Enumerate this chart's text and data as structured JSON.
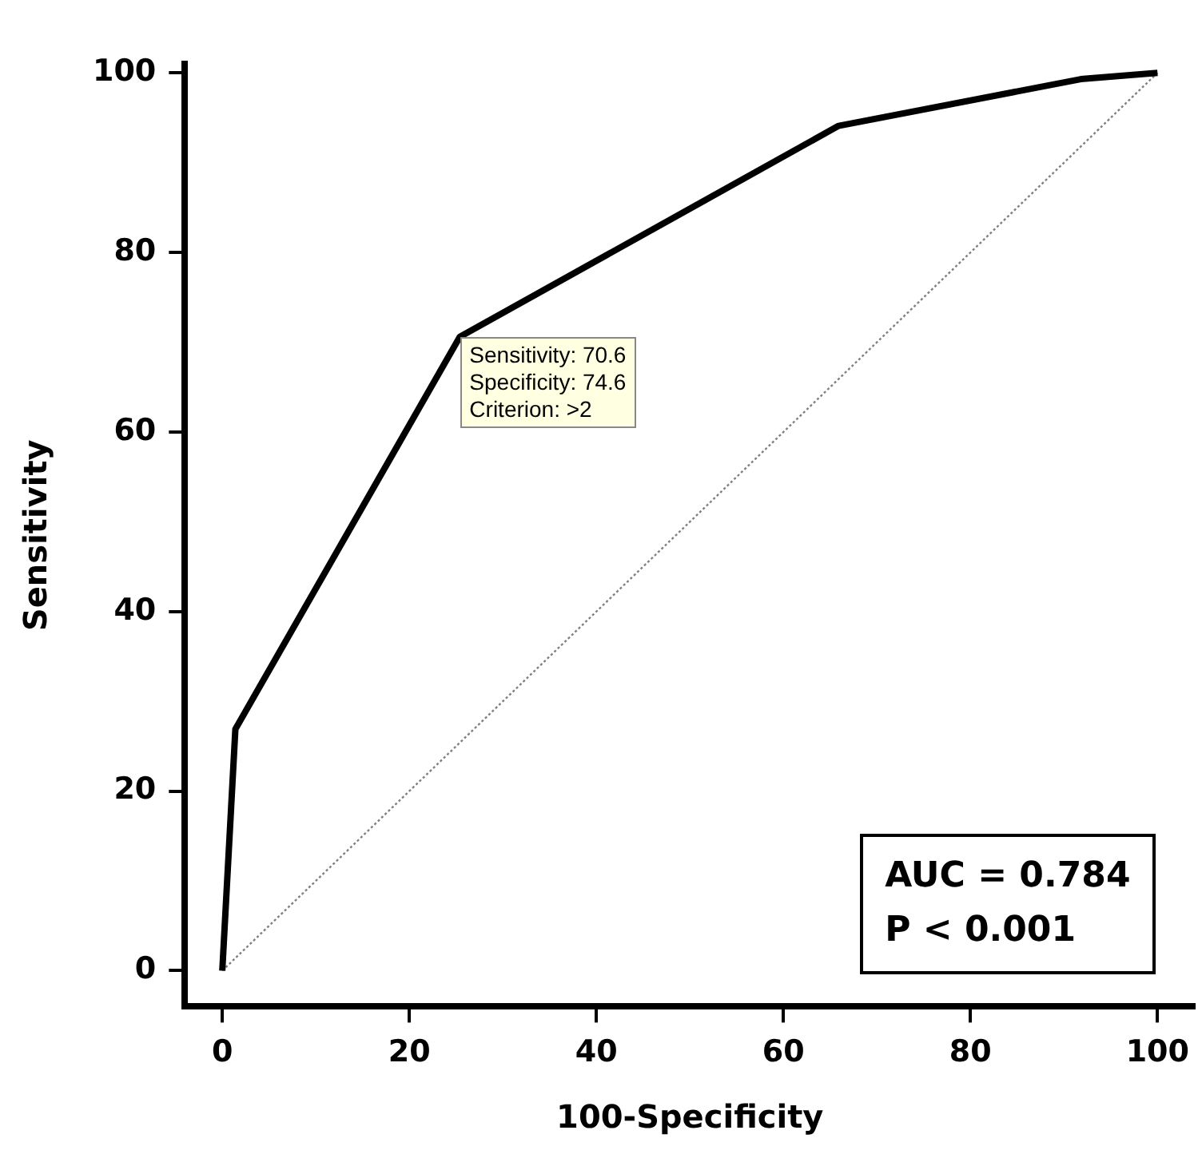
{
  "chart_data": {
    "type": "line",
    "xlabel": "100-Specificity",
    "ylabel": "Sensitivity",
    "xlim": [
      -4,
      104
    ],
    "ylim": [
      -4,
      101
    ],
    "xticks": [
      0,
      20,
      40,
      60,
      80,
      100
    ],
    "yticks": [
      0,
      20,
      40,
      60,
      80,
      100
    ],
    "grid": false,
    "legend": false,
    "marker": "none",
    "series": [
      {
        "color": "#000000",
        "line_style": "solid",
        "x": [
          0,
          1.4,
          25.4,
          65.9,
          91.8,
          100
        ],
        "values": [
          0,
          26.9,
          70.6,
          94.1,
          99.3,
          100
        ]
      },
      {
        "color": "#808080",
        "line_style": "dotted",
        "x": [
          0,
          100
        ],
        "values": [
          0,
          100
        ]
      }
    ],
    "annotations": [
      {
        "text": "Sensitivity: 70.6\nSpecificity: 74.6\nCriterion: >2",
        "x": 25.4,
        "y": 70.6
      },
      "AUC = 0.784\nP < 0.001"
    ]
  }
}
